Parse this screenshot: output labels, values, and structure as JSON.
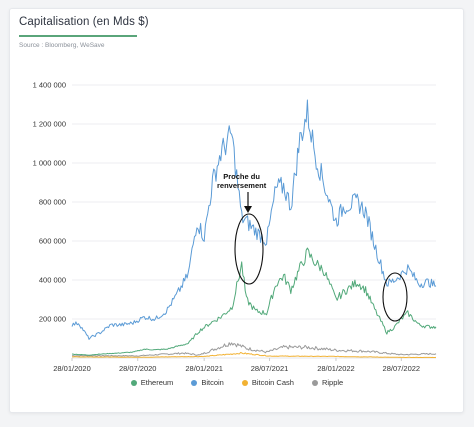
{
  "title": "Capitalisation (en Mds $)",
  "source": "Source : Bloomberg, WeSave",
  "annotation": {
    "line1": "Proche du",
    "line2": "renversement"
  },
  "colors": {
    "ethereum": "#52a97a",
    "bitcoin": "#5b9bd6",
    "bitcoin_cash": "#f2b233",
    "ripple": "#9a9a9a",
    "accent": "#5aa57a"
  },
  "chart_data": {
    "type": "line",
    "title": "Capitalisation (en Mds $)",
    "xlabel": "",
    "ylabel": "",
    "x_ticks": [
      "28/01/2020",
      "28/07/2020",
      "28/01/2021",
      "28/07/2021",
      "28/01/2022",
      "28/07/2022"
    ],
    "y_ticks": [
      "200 000",
      "400 000",
      "600 000",
      "800 000",
      "1 000 000",
      "1 200 000",
      "1 400 000"
    ],
    "ylim": [
      0,
      1400000
    ],
    "grid": true,
    "legend_position": "bottom",
    "series": [
      {
        "name": "Ethereum",
        "x": [
          "2020-01-28",
          "2020-03-15",
          "2020-04-15",
          "2020-06-01",
          "2020-07-15",
          "2020-08-15",
          "2020-09-15",
          "2020-10-15",
          "2020-11-15",
          "2020-12-15",
          "2021-01-15",
          "2021-02-15",
          "2021-03-15",
          "2021-04-15",
          "2021-05-12",
          "2021-05-25",
          "2021-06-20",
          "2021-07-20",
          "2021-08-15",
          "2021-09-05",
          "2021-09-25",
          "2021-10-20",
          "2021-11-10",
          "2021-12-01",
          "2021-12-25",
          "2022-01-28",
          "2022-02-20",
          "2022-03-28",
          "2022-04-20",
          "2022-05-15",
          "2022-06-18",
          "2022-07-10",
          "2022-07-28",
          "2022-08-15",
          "2022-09-15",
          "2022-10-10",
          "2022-11-01"
        ],
        "y": [
          20000,
          15000,
          20000,
          25000,
          30000,
          45000,
          42000,
          45000,
          60000,
          75000,
          140000,
          180000,
          210000,
          260000,
          480000,
          300000,
          240000,
          230000,
          380000,
          420000,
          350000,
          460000,
          540000,
          490000,
          450000,
          300000,
          340000,
          390000,
          350000,
          250000,
          130000,
          160000,
          200000,
          230000,
          170000,
          160000,
          160000
        ]
      },
      {
        "name": "Bitcoin",
        "x": [
          "2020-01-28",
          "2020-02-15",
          "2020-03-15",
          "2020-04-15",
          "2020-05-15",
          "2020-06-15",
          "2020-07-15",
          "2020-08-15",
          "2020-09-15",
          "2020-10-15",
          "2020-11-15",
          "2020-12-15",
          "2021-01-08",
          "2021-01-28",
          "2021-02-20",
          "2021-03-15",
          "2021-04-14",
          "2021-05-12",
          "2021-05-25",
          "2021-06-20",
          "2021-07-20",
          "2021-08-15",
          "2021-09-05",
          "2021-09-25",
          "2021-10-20",
          "2021-11-10",
          "2021-12-01",
          "2021-12-25",
          "2022-01-28",
          "2022-02-20",
          "2022-03-28",
          "2022-04-20",
          "2022-05-15",
          "2022-06-18",
          "2022-07-10",
          "2022-07-28",
          "2022-08-15",
          "2022-09-15",
          "2022-10-10",
          "2022-11-01"
        ],
        "y": [
          170000,
          180000,
          100000,
          130000,
          170000,
          170000,
          180000,
          210000,
          200000,
          240000,
          330000,
          430000,
          700000,
          620000,
          900000,
          1050000,
          1150000,
          720000,
          700000,
          650000,
          600000,
          870000,
          880000,
          780000,
          1120000,
          1260000,
          1050000,
          900000,
          700000,
          780000,
          800000,
          750000,
          580000,
          380000,
          400000,
          430000,
          460000,
          380000,
          390000,
          370000
        ]
      },
      {
        "name": "Bitcoin Cash",
        "x": [
          "2020-01-28",
          "2020-07-28",
          "2021-01-28",
          "2021-05-12",
          "2021-07-28",
          "2022-01-28",
          "2022-07-28",
          "2022-11-01"
        ],
        "y": [
          6000,
          4000,
          8000,
          25000,
          10000,
          8000,
          3000,
          3000
        ]
      },
      {
        "name": "Ripple",
        "x": [
          "2020-01-28",
          "2020-07-28",
          "2020-12-01",
          "2021-01-15",
          "2021-04-14",
          "2021-05-25",
          "2021-07-20",
          "2021-09-05",
          "2021-11-10",
          "2022-01-28",
          "2022-04-20",
          "2022-07-28",
          "2022-11-01"
        ],
        "y": [
          12000,
          11000,
          25000,
          15000,
          80000,
          50000,
          30000,
          55000,
          55000,
          40000,
          35000,
          17000,
          22000
        ]
      }
    ],
    "annotation": {
      "text": "Proche du renversement",
      "date": "2021-06-01"
    }
  }
}
